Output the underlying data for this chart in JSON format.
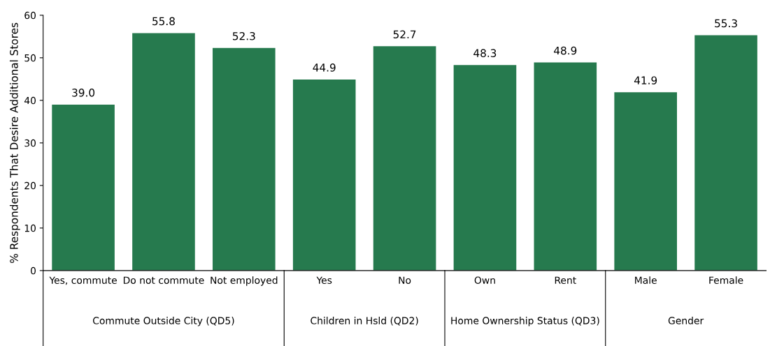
{
  "chart_data": [
    {
      "type": "bar",
      "ylabel": "% Respondents That Desire Additional Stores",
      "xlabel": "Commute Outside City (QD5)",
      "categories": [
        "Yes, commute",
        "Do not commute",
        "Not employed"
      ],
      "values": [
        39.0,
        55.8,
        52.3
      ],
      "value_labels": [
        "39.0",
        "55.8",
        "52.3"
      ],
      "color": "#267a4e",
      "ylim": [
        0,
        60
      ],
      "yticks": [
        0,
        10,
        20,
        30,
        40,
        50,
        60
      ],
      "grid": false
    },
    {
      "type": "bar",
      "xlabel": "Children in Hsld (QD2)",
      "categories": [
        "Yes",
        "No"
      ],
      "values": [
        44.9,
        52.7
      ],
      "value_labels": [
        "44.9",
        "52.7"
      ],
      "color": "#267a4e",
      "ylim": [
        0,
        60
      ],
      "yticks": [
        0,
        10,
        20,
        30,
        40,
        50,
        60
      ],
      "tick_labels": "x",
      "grid": false
    },
    {
      "type": "bar",
      "xlabel": "Home Ownership Status (QD3)",
      "categories": [
        "Own",
        "Rent"
      ],
      "values": [
        48.3,
        48.9
      ],
      "value_labels": [
        "48.3",
        "48.9"
      ],
      "color": "#267a4e",
      "ylim": [
        0,
        60
      ],
      "yticks": [
        0,
        10,
        20,
        30,
        40,
        50,
        60
      ],
      "tick_labels": "x",
      "grid": false
    },
    {
      "type": "bar",
      "xlabel": "Gender",
      "categories": [
        "Male",
        "Female"
      ],
      "values": [
        41.9,
        55.3
      ],
      "value_labels": [
        "41.9",
        "55.3"
      ],
      "color": "#267a4e",
      "ylim": [
        0,
        60
      ],
      "yticks": [
        0,
        10,
        20,
        30,
        40,
        50,
        60
      ],
      "tick_labels": "x",
      "grid": false
    }
  ]
}
